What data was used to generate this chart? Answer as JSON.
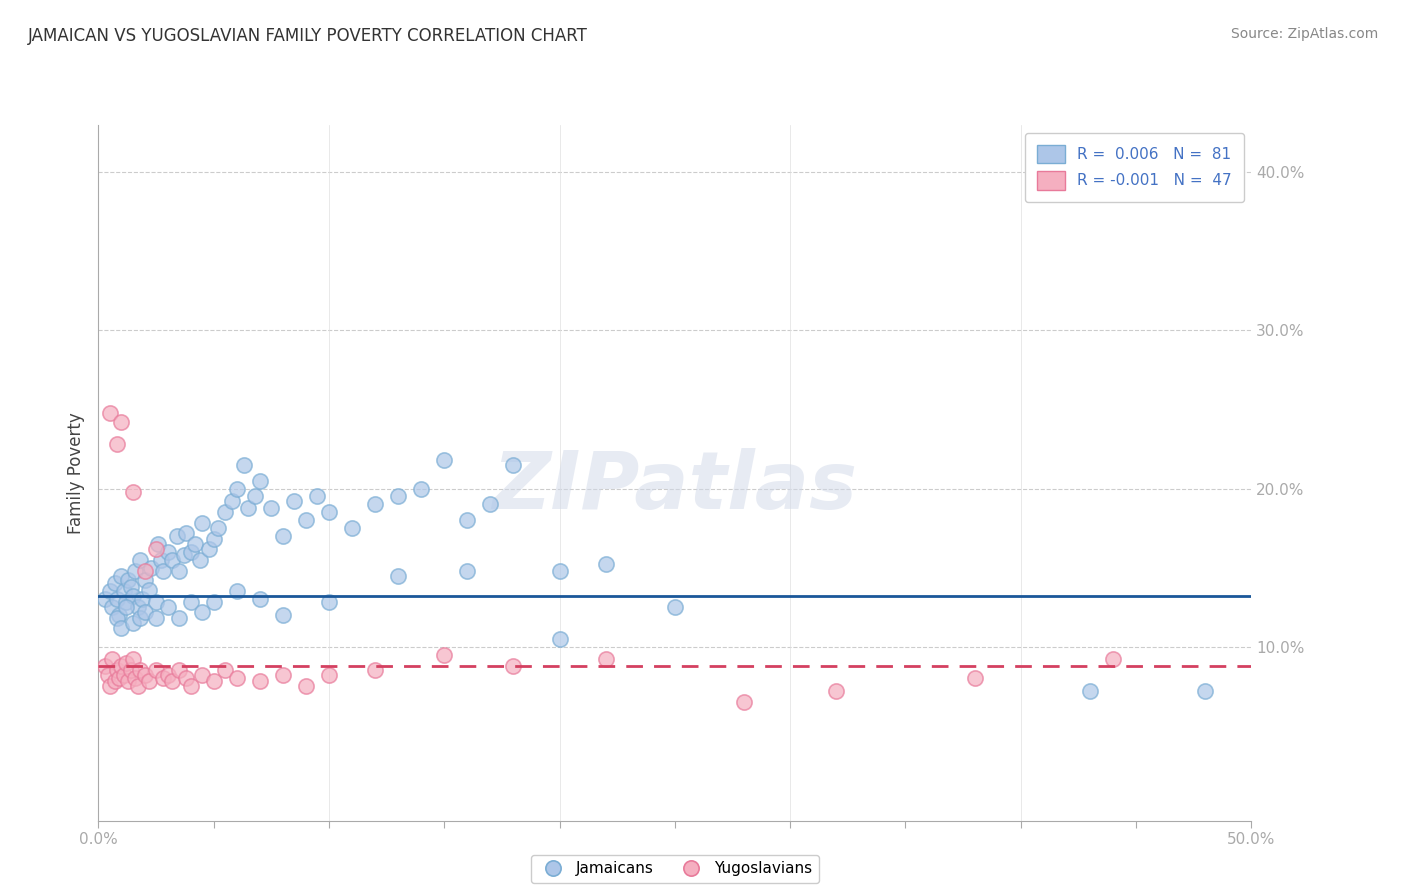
{
  "title": "JAMAICAN VS YUGOSLAVIAN FAMILY POVERTY CORRELATION CHART",
  "source_text": "Source: ZipAtlas.com",
  "xlabel": "",
  "ylabel": "Family Poverty",
  "xlim": [
    0.0,
    0.5
  ],
  "ylim": [
    -0.01,
    0.43
  ],
  "xticks": [
    0.0,
    0.05,
    0.1,
    0.15,
    0.2,
    0.25,
    0.3,
    0.35,
    0.4,
    0.45,
    0.5
  ],
  "xticklabels": [
    "0.0%",
    "",
    "",
    "",
    "",
    "",
    "",
    "",
    "",
    "",
    "50.0%"
  ],
  "yticks": [
    0.1,
    0.2,
    0.3,
    0.4
  ],
  "yticklabels": [
    "10.0%",
    "20.0%",
    "30.0%",
    "40.0%"
  ],
  "jamaicans_color": "#adc6e8",
  "jamaicans_edge_color": "#7aadd4",
  "yugoslavians_color": "#f5afc0",
  "yugoslavians_edge_color": "#e87a9a",
  "jamaicans_line_color": "#1a5799",
  "yugoslavians_line_color": "#d44060",
  "legend_R1": "0.006",
  "legend_N1": "81",
  "legend_R2": "-0.001",
  "legend_N2": "47",
  "jamaicans_line_y": 0.132,
  "yugoslavians_line_y": 0.088,
  "background_color": "#ffffff",
  "grid_color": "#cccccc",
  "watermark": "ZIPatlas",
  "title_fontsize": 12,
  "tick_label_fontsize": 11,
  "jamaicans_x": [
    0.003,
    0.005,
    0.006,
    0.007,
    0.008,
    0.009,
    0.01,
    0.011,
    0.012,
    0.013,
    0.014,
    0.015,
    0.016,
    0.017,
    0.018,
    0.019,
    0.02,
    0.022,
    0.023,
    0.025,
    0.026,
    0.027,
    0.028,
    0.03,
    0.032,
    0.034,
    0.035,
    0.037,
    0.038,
    0.04,
    0.042,
    0.044,
    0.045,
    0.048,
    0.05,
    0.052,
    0.055,
    0.058,
    0.06,
    0.063,
    0.065,
    0.068,
    0.07,
    0.075,
    0.08,
    0.085,
    0.09,
    0.095,
    0.1,
    0.11,
    0.12,
    0.13,
    0.14,
    0.15,
    0.16,
    0.17,
    0.18,
    0.2,
    0.22,
    0.25,
    0.008,
    0.01,
    0.012,
    0.015,
    0.018,
    0.02,
    0.025,
    0.03,
    0.035,
    0.04,
    0.045,
    0.05,
    0.06,
    0.07,
    0.08,
    0.1,
    0.13,
    0.16,
    0.2,
    0.43,
    0.48
  ],
  "jamaicans_y": [
    0.13,
    0.135,
    0.125,
    0.14,
    0.13,
    0.12,
    0.145,
    0.135,
    0.128,
    0.142,
    0.138,
    0.132,
    0.148,
    0.125,
    0.155,
    0.13,
    0.142,
    0.136,
    0.15,
    0.128,
    0.165,
    0.155,
    0.148,
    0.16,
    0.155,
    0.17,
    0.148,
    0.158,
    0.172,
    0.16,
    0.165,
    0.155,
    0.178,
    0.162,
    0.168,
    0.175,
    0.185,
    0.192,
    0.2,
    0.215,
    0.188,
    0.195,
    0.205,
    0.188,
    0.17,
    0.192,
    0.18,
    0.195,
    0.185,
    0.175,
    0.19,
    0.195,
    0.2,
    0.218,
    0.18,
    0.19,
    0.215,
    0.148,
    0.152,
    0.125,
    0.118,
    0.112,
    0.125,
    0.115,
    0.118,
    0.122,
    0.118,
    0.125,
    0.118,
    0.128,
    0.122,
    0.128,
    0.135,
    0.13,
    0.12,
    0.128,
    0.145,
    0.148,
    0.105,
    0.072,
    0.072
  ],
  "yugoslavians_x": [
    0.003,
    0.004,
    0.005,
    0.006,
    0.007,
    0.008,
    0.009,
    0.01,
    0.011,
    0.012,
    0.013,
    0.014,
    0.015,
    0.016,
    0.017,
    0.018,
    0.02,
    0.022,
    0.025,
    0.028,
    0.03,
    0.032,
    0.035,
    0.038,
    0.04,
    0.045,
    0.05,
    0.055,
    0.06,
    0.07,
    0.08,
    0.09,
    0.1,
    0.12,
    0.15,
    0.18,
    0.22,
    0.28,
    0.32,
    0.38,
    0.005,
    0.008,
    0.01,
    0.015,
    0.02,
    0.025,
    0.44
  ],
  "yugoslavians_y": [
    0.088,
    0.082,
    0.075,
    0.092,
    0.078,
    0.085,
    0.08,
    0.088,
    0.082,
    0.09,
    0.078,
    0.085,
    0.092,
    0.08,
    0.075,
    0.085,
    0.082,
    0.078,
    0.085,
    0.08,
    0.082,
    0.078,
    0.085,
    0.08,
    0.075,
    0.082,
    0.078,
    0.085,
    0.08,
    0.078,
    0.082,
    0.075,
    0.082,
    0.085,
    0.095,
    0.088,
    0.092,
    0.065,
    0.072,
    0.08,
    0.248,
    0.228,
    0.242,
    0.198,
    0.148,
    0.162,
    0.092
  ]
}
